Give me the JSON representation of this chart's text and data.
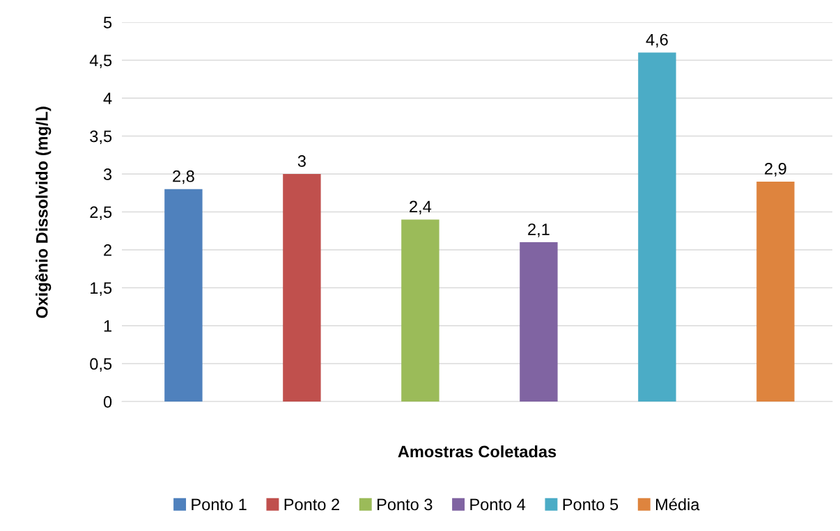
{
  "chart_data": {
    "type": "bar",
    "xlabel": "Amostras Coletadas",
    "ylabel": "Oxigênio Dissolvido (mg/L)",
    "categories": [
      null
    ],
    "series": [
      {
        "name": "Ponto 1",
        "color": "#4f81bd",
        "values": [
          2.8
        ],
        "value_labels": [
          "2,8"
        ]
      },
      {
        "name": "Ponto 2",
        "color": "#c0504d",
        "values": [
          3
        ],
        "value_labels": [
          "3"
        ]
      },
      {
        "name": "Ponto 3",
        "color": "#9bbb59",
        "values": [
          2.4
        ],
        "value_labels": [
          "2,4"
        ]
      },
      {
        "name": "Ponto 4",
        "color": "#8064a2",
        "values": [
          2.1
        ],
        "value_labels": [
          "2,1"
        ]
      },
      {
        "name": "Ponto 5",
        "color": "#4bacc6",
        "values": [
          4.6
        ],
        "value_labels": [
          "4,6"
        ]
      },
      {
        "name": "Média",
        "color": "#de843e",
        "values": [
          2.9
        ],
        "value_labels": [
          "2,9"
        ]
      }
    ],
    "ylim": [
      0,
      5
    ],
    "yticks": [
      0,
      {
        "value": 0.5,
        "label": "0,5"
      },
      1,
      {
        "value": 1.5,
        "label": "1,5"
      },
      2,
      {
        "value": 2.5,
        "label": "2,5"
      },
      3,
      {
        "value": 3.5,
        "label": "3,5"
      },
      4,
      {
        "value": 4.5,
        "label": "4,5"
      },
      5
    ],
    "grid": "y",
    "legend": "bottom"
  }
}
